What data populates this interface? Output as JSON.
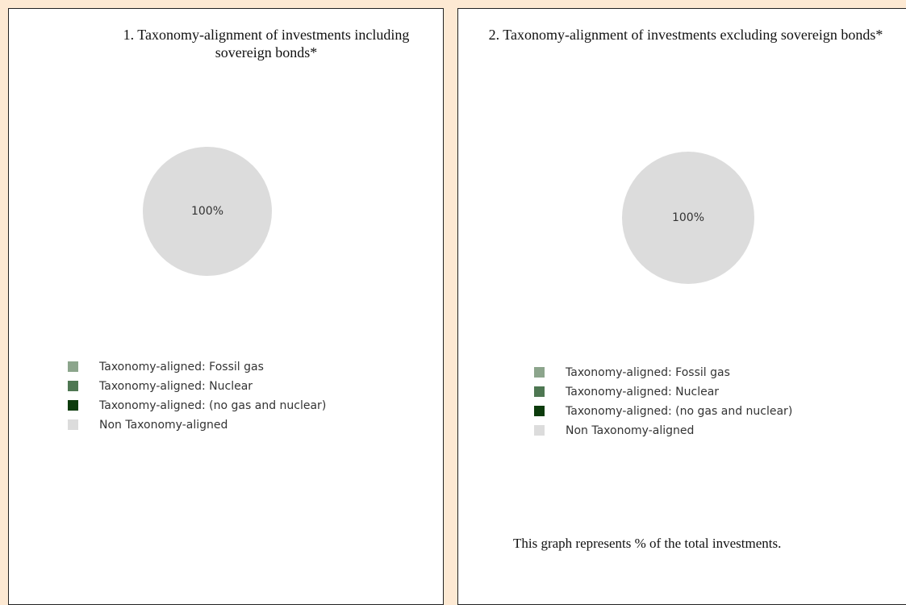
{
  "chart_data": [
    {
      "type": "pie",
      "title": "1. Taxonomy-alignment of investments including sovereign bonds*",
      "categories": [
        "Taxonomy-aligned: Fossil gas",
        "Taxonomy-aligned: Nuclear",
        "Taxonomy-aligned: (no gas and nuclear)",
        "Non Taxonomy-aligned"
      ],
      "values": [
        0,
        0,
        0,
        100
      ],
      "value_labels": [
        null,
        null,
        null,
        "100%"
      ],
      "colors": [
        "#8ca58c",
        "#4e7752",
        "#0c3b0c",
        "#dcdcdc"
      ]
    },
    {
      "type": "pie",
      "title": "2. Taxonomy-alignment of investments excluding sovereign bonds*",
      "categories": [
        "Taxonomy-aligned: Fossil gas",
        "Taxonomy-aligned: Nuclear",
        "Taxonomy-aligned: (no gas and nuclear)",
        "Non Taxonomy-aligned"
      ],
      "values": [
        0,
        0,
        0,
        100
      ],
      "value_labels": [
        null,
        null,
        null,
        "100%"
      ],
      "colors": [
        "#8ca58c",
        "#4e7752",
        "#0c3b0c",
        "#dcdcdc"
      ],
      "note": "This graph represents % of the total investments."
    }
  ]
}
